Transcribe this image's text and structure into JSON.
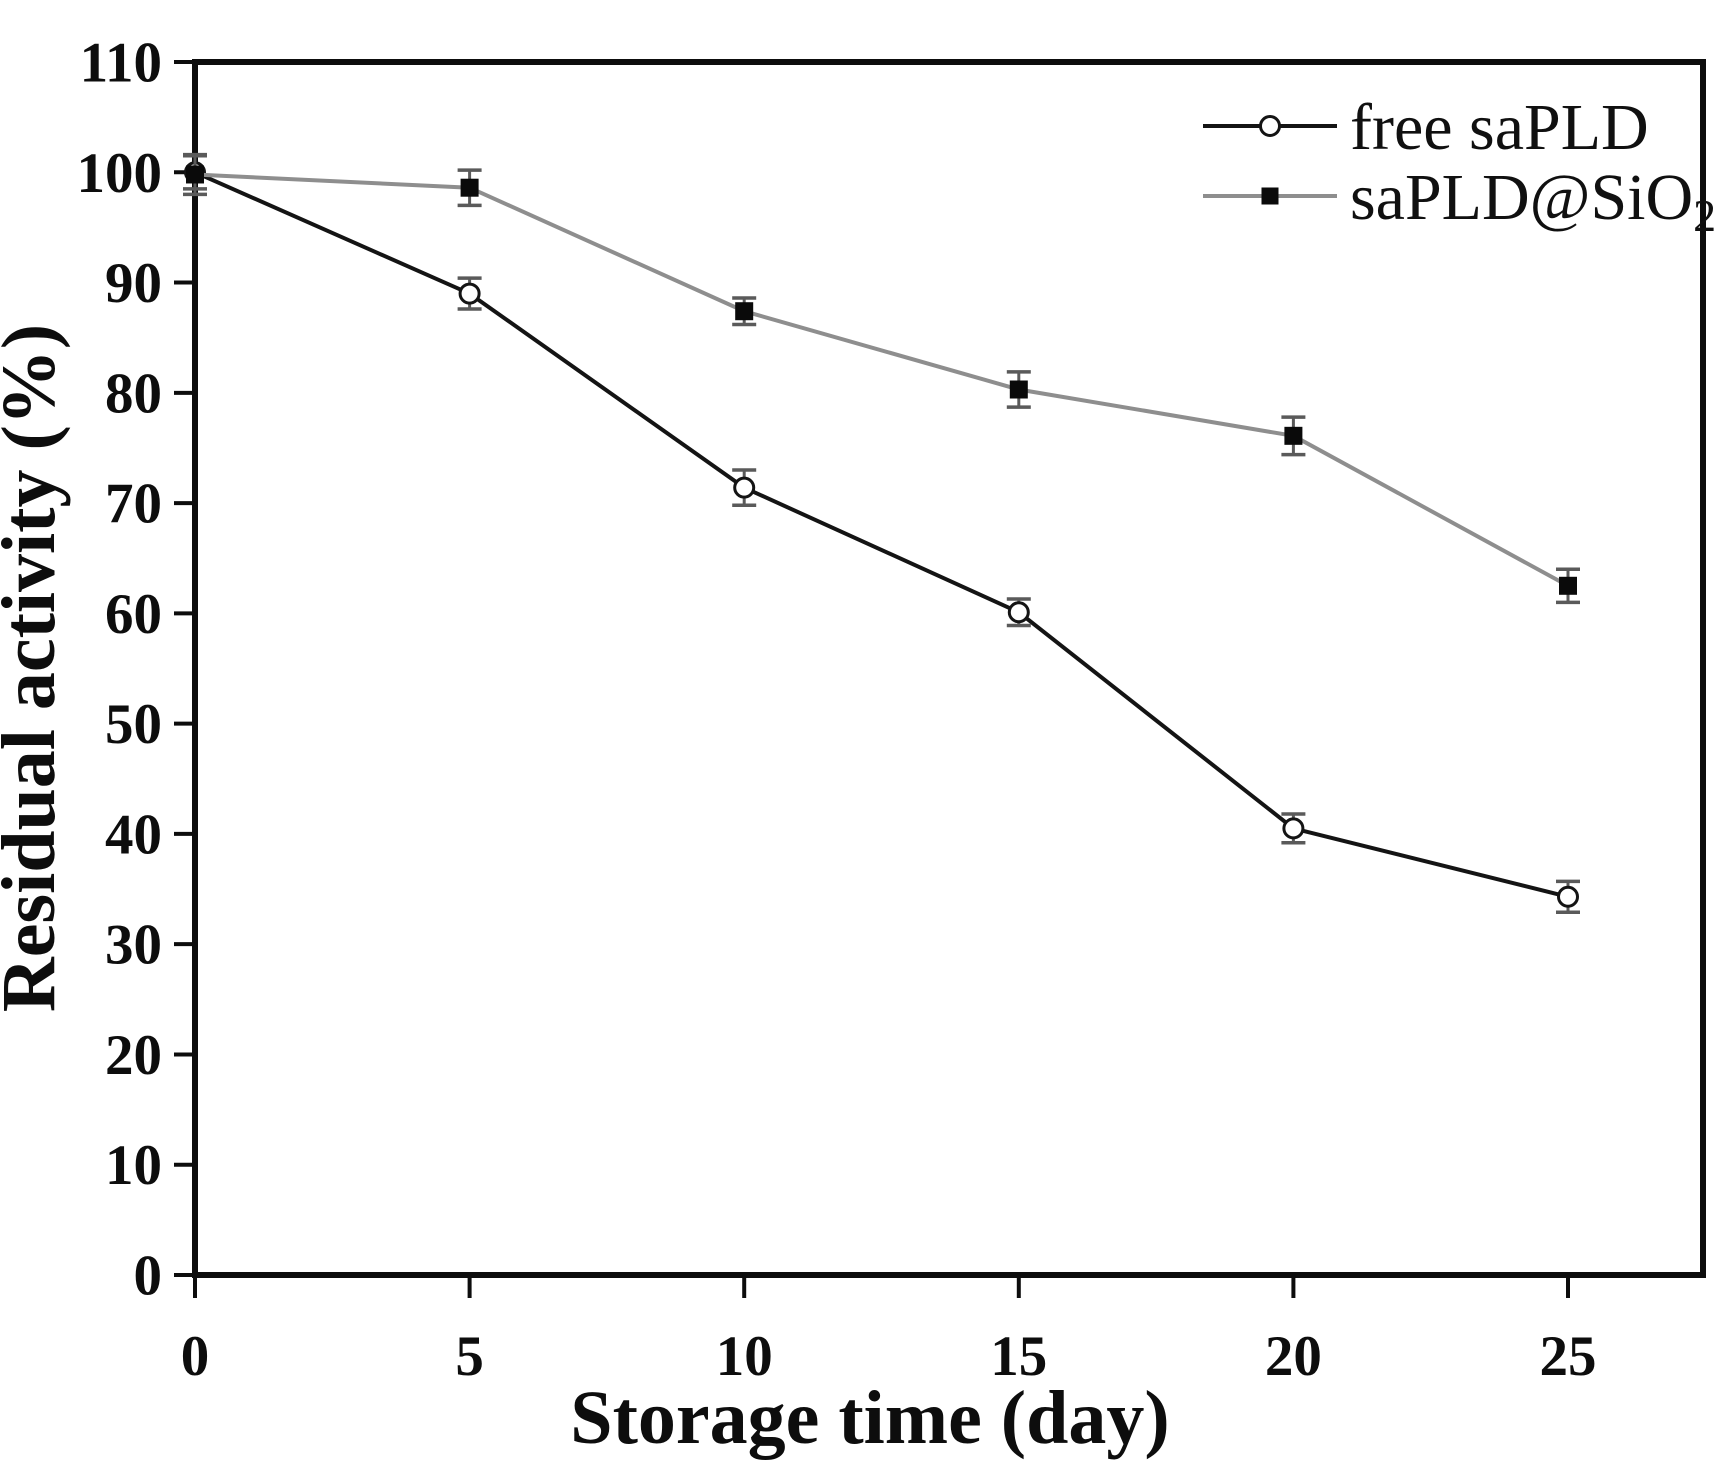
{
  "figure": {
    "background_color": "#ffffff",
    "axis_color": "#0d0d0d",
    "error_bar_color": "#5a5a5a"
  },
  "chart_data": {
    "type": "line",
    "title": "",
    "xlabel": "Storage time (day)",
    "ylabel": "Residual activity (%)",
    "x": [
      0,
      5,
      10,
      15,
      20,
      25
    ],
    "xlim": [
      0,
      27.5
    ],
    "ylim": [
      0,
      110
    ],
    "x_tick_labels": [
      "0",
      "5",
      "10",
      "15",
      "20",
      "25"
    ],
    "y_tick_labels": [
      "0",
      "10",
      "20",
      "30",
      "40",
      "50",
      "60",
      "70",
      "80",
      "90",
      "100",
      "110"
    ],
    "y_tick_values": [
      0,
      10,
      20,
      30,
      40,
      50,
      60,
      70,
      80,
      90,
      100,
      110
    ],
    "grid": false,
    "legend": {
      "position": "top-right-inside",
      "entries": [
        "free saPLD",
        "saPLD@SiO2"
      ]
    },
    "series": [
      {
        "name": "free saPLD",
        "name_base": "free saPLD",
        "name_sub": "",
        "marker": "open-circle",
        "line_color": "#141414",
        "marker_fill": "#ffffff",
        "marker_stroke": "#141414",
        "values": [
          100.0,
          89.0,
          71.4,
          60.1,
          40.5,
          34.3
        ],
        "errors": [
          1.5,
          1.4,
          1.6,
          1.2,
          1.3,
          1.4
        ]
      },
      {
        "name": "saPLD@SiO2",
        "name_base": "saPLD@SiO",
        "name_sub": "2",
        "marker": "filled-square",
        "line_color": "#8e8e8e",
        "marker_fill": "#0a0a0a",
        "marker_stroke": "#0a0a0a",
        "values": [
          99.8,
          98.6,
          87.4,
          80.3,
          76.1,
          62.5
        ],
        "errors": [
          1.8,
          1.6,
          1.2,
          1.6,
          1.7,
          1.5
        ]
      }
    ]
  }
}
